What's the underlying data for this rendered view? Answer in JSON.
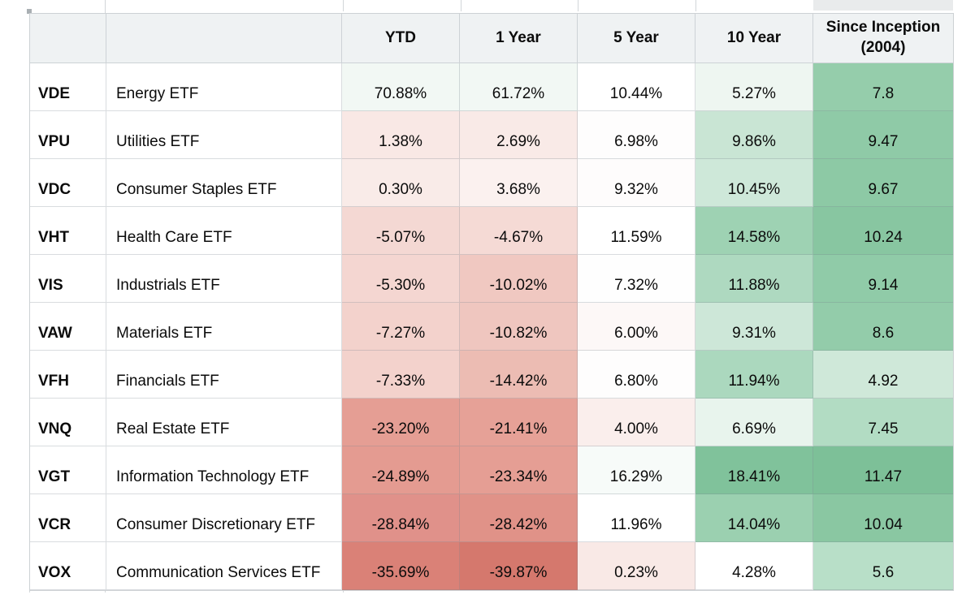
{
  "table": {
    "columns": [
      {
        "key": "ticker",
        "label": ""
      },
      {
        "key": "name",
        "label": ""
      },
      {
        "key": "ytd",
        "label": "YTD"
      },
      {
        "key": "year1",
        "label": "1 Year"
      },
      {
        "key": "year5",
        "label": "5 Year"
      },
      {
        "key": "year10",
        "label": "10 Year"
      },
      {
        "key": "inception",
        "label": "Since Inception (2004)"
      }
    ],
    "rows": [
      {
        "ticker": "VDE",
        "name": "Energy ETF",
        "values": [
          "70.88%",
          "61.72%",
          "10.44%",
          "5.27%",
          "7.8"
        ],
        "colors": [
          "#f2f8f4",
          "#f2f8f4",
          "#ffffff",
          "#eef6f1",
          "#95cdab"
        ]
      },
      {
        "ticker": "VPU",
        "name": "Utilities ETF",
        "values": [
          "1.38%",
          "2.69%",
          "6.98%",
          "9.86%",
          "9.47"
        ],
        "colors": [
          "#f9e8e5",
          "#f9eae7",
          "#fefdfd",
          "#c9e5d4",
          "#8fcaa7"
        ]
      },
      {
        "ticker": "VDC",
        "name": "Consumer Staples ETF",
        "values": [
          "0.30%",
          "3.68%",
          "9.32%",
          "10.45%",
          "9.67"
        ],
        "colors": [
          "#f9ebe8",
          "#fbf1ef",
          "#fefcfc",
          "#cee8d9",
          "#8dc9a5"
        ]
      },
      {
        "ticker": "VHT",
        "name": "Health Care ETF",
        "values": [
          "-5.07%",
          "-4.67%",
          "11.59%",
          "14.58%",
          "10.24"
        ],
        "colors": [
          "#f4d8d3",
          "#f5dad5",
          "#ffffff",
          "#9ed2b3",
          "#88c6a1"
        ]
      },
      {
        "ticker": "VIS",
        "name": "Industrials ETF",
        "values": [
          "-5.30%",
          "-10.02%",
          "7.32%",
          "11.88%",
          "9.14"
        ],
        "colors": [
          "#f4d6d1",
          "#f0c8c1",
          "#fefefe",
          "#aed9c0",
          "#90cba8"
        ]
      },
      {
        "ticker": "VAW",
        "name": "Materials ETF",
        "values": [
          "-7.27%",
          "-10.82%",
          "6.00%",
          "9.31%",
          "8.6"
        ],
        "colors": [
          "#f3d2cc",
          "#efc6bf",
          "#fdf8f7",
          "#cde7d8",
          "#93ccaa"
        ]
      },
      {
        "ticker": "VFH",
        "name": "Financials ETF",
        "values": [
          "-7.33%",
          "-14.42%",
          "6.80%",
          "11.94%",
          "4.92"
        ],
        "colors": [
          "#f3d2cc",
          "#ecbcb3",
          "#fefdfd",
          "#abd8be",
          "#cfe8d9"
        ]
      },
      {
        "ticker": "VNQ",
        "name": "Real Estate ETF",
        "values": [
          "-23.20%",
          "-21.41%",
          "4.00%",
          "6.69%",
          "7.45"
        ],
        "colors": [
          "#e59e94",
          "#e6a197",
          "#faeeec",
          "#e8f4ed",
          "#b2dcc3"
        ]
      },
      {
        "ticker": "VGT",
        "name": "Information Technology ETF",
        "values": [
          "-24.89%",
          "-23.34%",
          "16.29%",
          "18.41%",
          "11.47"
        ],
        "colors": [
          "#e49b91",
          "#e59e94",
          "#f7fbf9",
          "#80c29b",
          "#7dc098"
        ]
      },
      {
        "ticker": "VCR",
        "name": "Consumer Discretionary ETF",
        "values": [
          "-28.84%",
          "-28.42%",
          "11.96%",
          "14.04%",
          "10.04"
        ],
        "colors": [
          "#e0918a",
          "#e09288",
          "#ffffff",
          "#9bd0b0",
          "#8ac7a2"
        ]
      },
      {
        "ticker": "VOX",
        "name": "Communication Services ETF",
        "values": [
          "-35.69%",
          "-39.87%",
          "0.23%",
          "4.28%",
          "5.6"
        ],
        "colors": [
          "#da8177",
          "#d5786d",
          "#f9e9e6",
          "#ffffff",
          "#b8dfc8"
        ]
      }
    ]
  },
  "chart_data": {
    "type": "heatmap",
    "categories": [
      "VDE",
      "VPU",
      "VDC",
      "VHT",
      "VIS",
      "VAW",
      "VFH",
      "VNQ",
      "VGT",
      "VCR",
      "VOX"
    ],
    "category_names": [
      "Energy ETF",
      "Utilities ETF",
      "Consumer Staples ETF",
      "Health Care ETF",
      "Industrials ETF",
      "Materials ETF",
      "Financials ETF",
      "Real Estate ETF",
      "Information Technology ETF",
      "Consumer Discretionary ETF",
      "Communication Services ETF"
    ],
    "series": [
      {
        "name": "YTD",
        "unit": "%",
        "values": [
          70.88,
          1.38,
          0.3,
          -5.07,
          -5.3,
          -7.27,
          -7.33,
          -23.2,
          -24.89,
          -28.84,
          -35.69
        ]
      },
      {
        "name": "1 Year",
        "unit": "%",
        "values": [
          61.72,
          2.69,
          3.68,
          -4.67,
          -10.02,
          -10.82,
          -14.42,
          -21.41,
          -23.34,
          -28.42,
          -39.87
        ]
      },
      {
        "name": "5 Year",
        "unit": "%",
        "values": [
          10.44,
          6.98,
          9.32,
          11.59,
          7.32,
          6.0,
          6.8,
          4.0,
          16.29,
          11.96,
          0.23
        ]
      },
      {
        "name": "10 Year",
        "unit": "%",
        "values": [
          5.27,
          9.86,
          10.45,
          14.58,
          11.88,
          9.31,
          11.94,
          6.69,
          18.41,
          14.04,
          4.28
        ]
      },
      {
        "name": "Since Inception (2004)",
        "unit": "",
        "values": [
          7.8,
          9.47,
          9.67,
          10.24,
          9.14,
          8.6,
          4.92,
          7.45,
          11.47,
          10.04,
          5.6
        ]
      }
    ],
    "color_scale": {
      "negative_max": "#d5786d",
      "neutral": "#ffffff",
      "positive_max": "#7dc098"
    },
    "legend": "none",
    "grid": true
  }
}
